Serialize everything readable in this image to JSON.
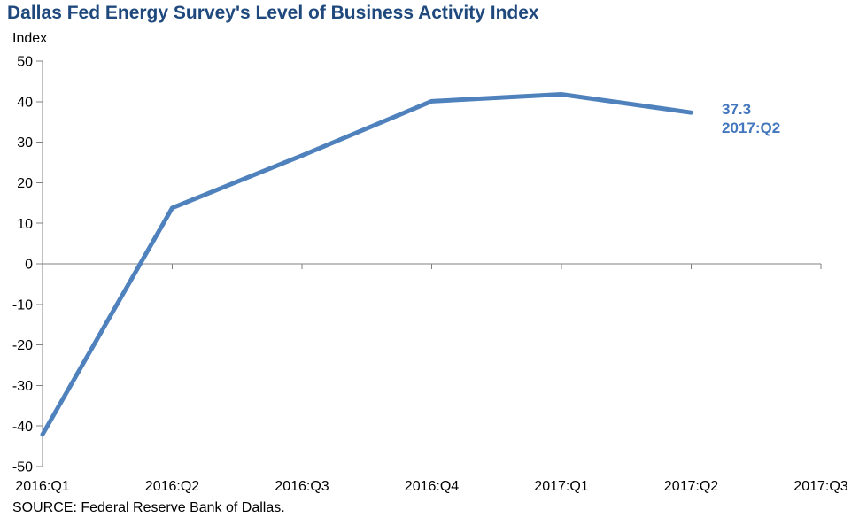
{
  "chart_data": {
    "type": "line",
    "title": "Dallas Fed Energy Survey's Level of Business Activity Index",
    "ylabel": "Index",
    "xlabel": "",
    "categories": [
      "2016:Q1",
      "2016:Q2",
      "2016:Q3",
      "2016:Q4",
      "2017:Q1",
      "2017:Q2",
      "2017:Q3"
    ],
    "series": [
      {
        "values": [
          -42.1,
          13.8,
          26.7,
          40.1,
          41.8,
          37.3
        ],
        "color": "#4F81BD"
      }
    ],
    "ylim": [
      -50,
      50
    ],
    "y_ticks": [
      50,
      40,
      30,
      20,
      10,
      0,
      -10,
      -20,
      -30,
      -40,
      -50
    ],
    "grid": false,
    "legend": "none",
    "annotation": {
      "value": "37.3",
      "label": "2017:Q2",
      "color": "#4377BD"
    },
    "colors": {
      "axis": "#808080",
      "tick_text": "#000000",
      "title": "#1F497D"
    }
  },
  "footer": {
    "source": "SOURCE: Federal Reserve Bank of Dallas."
  }
}
